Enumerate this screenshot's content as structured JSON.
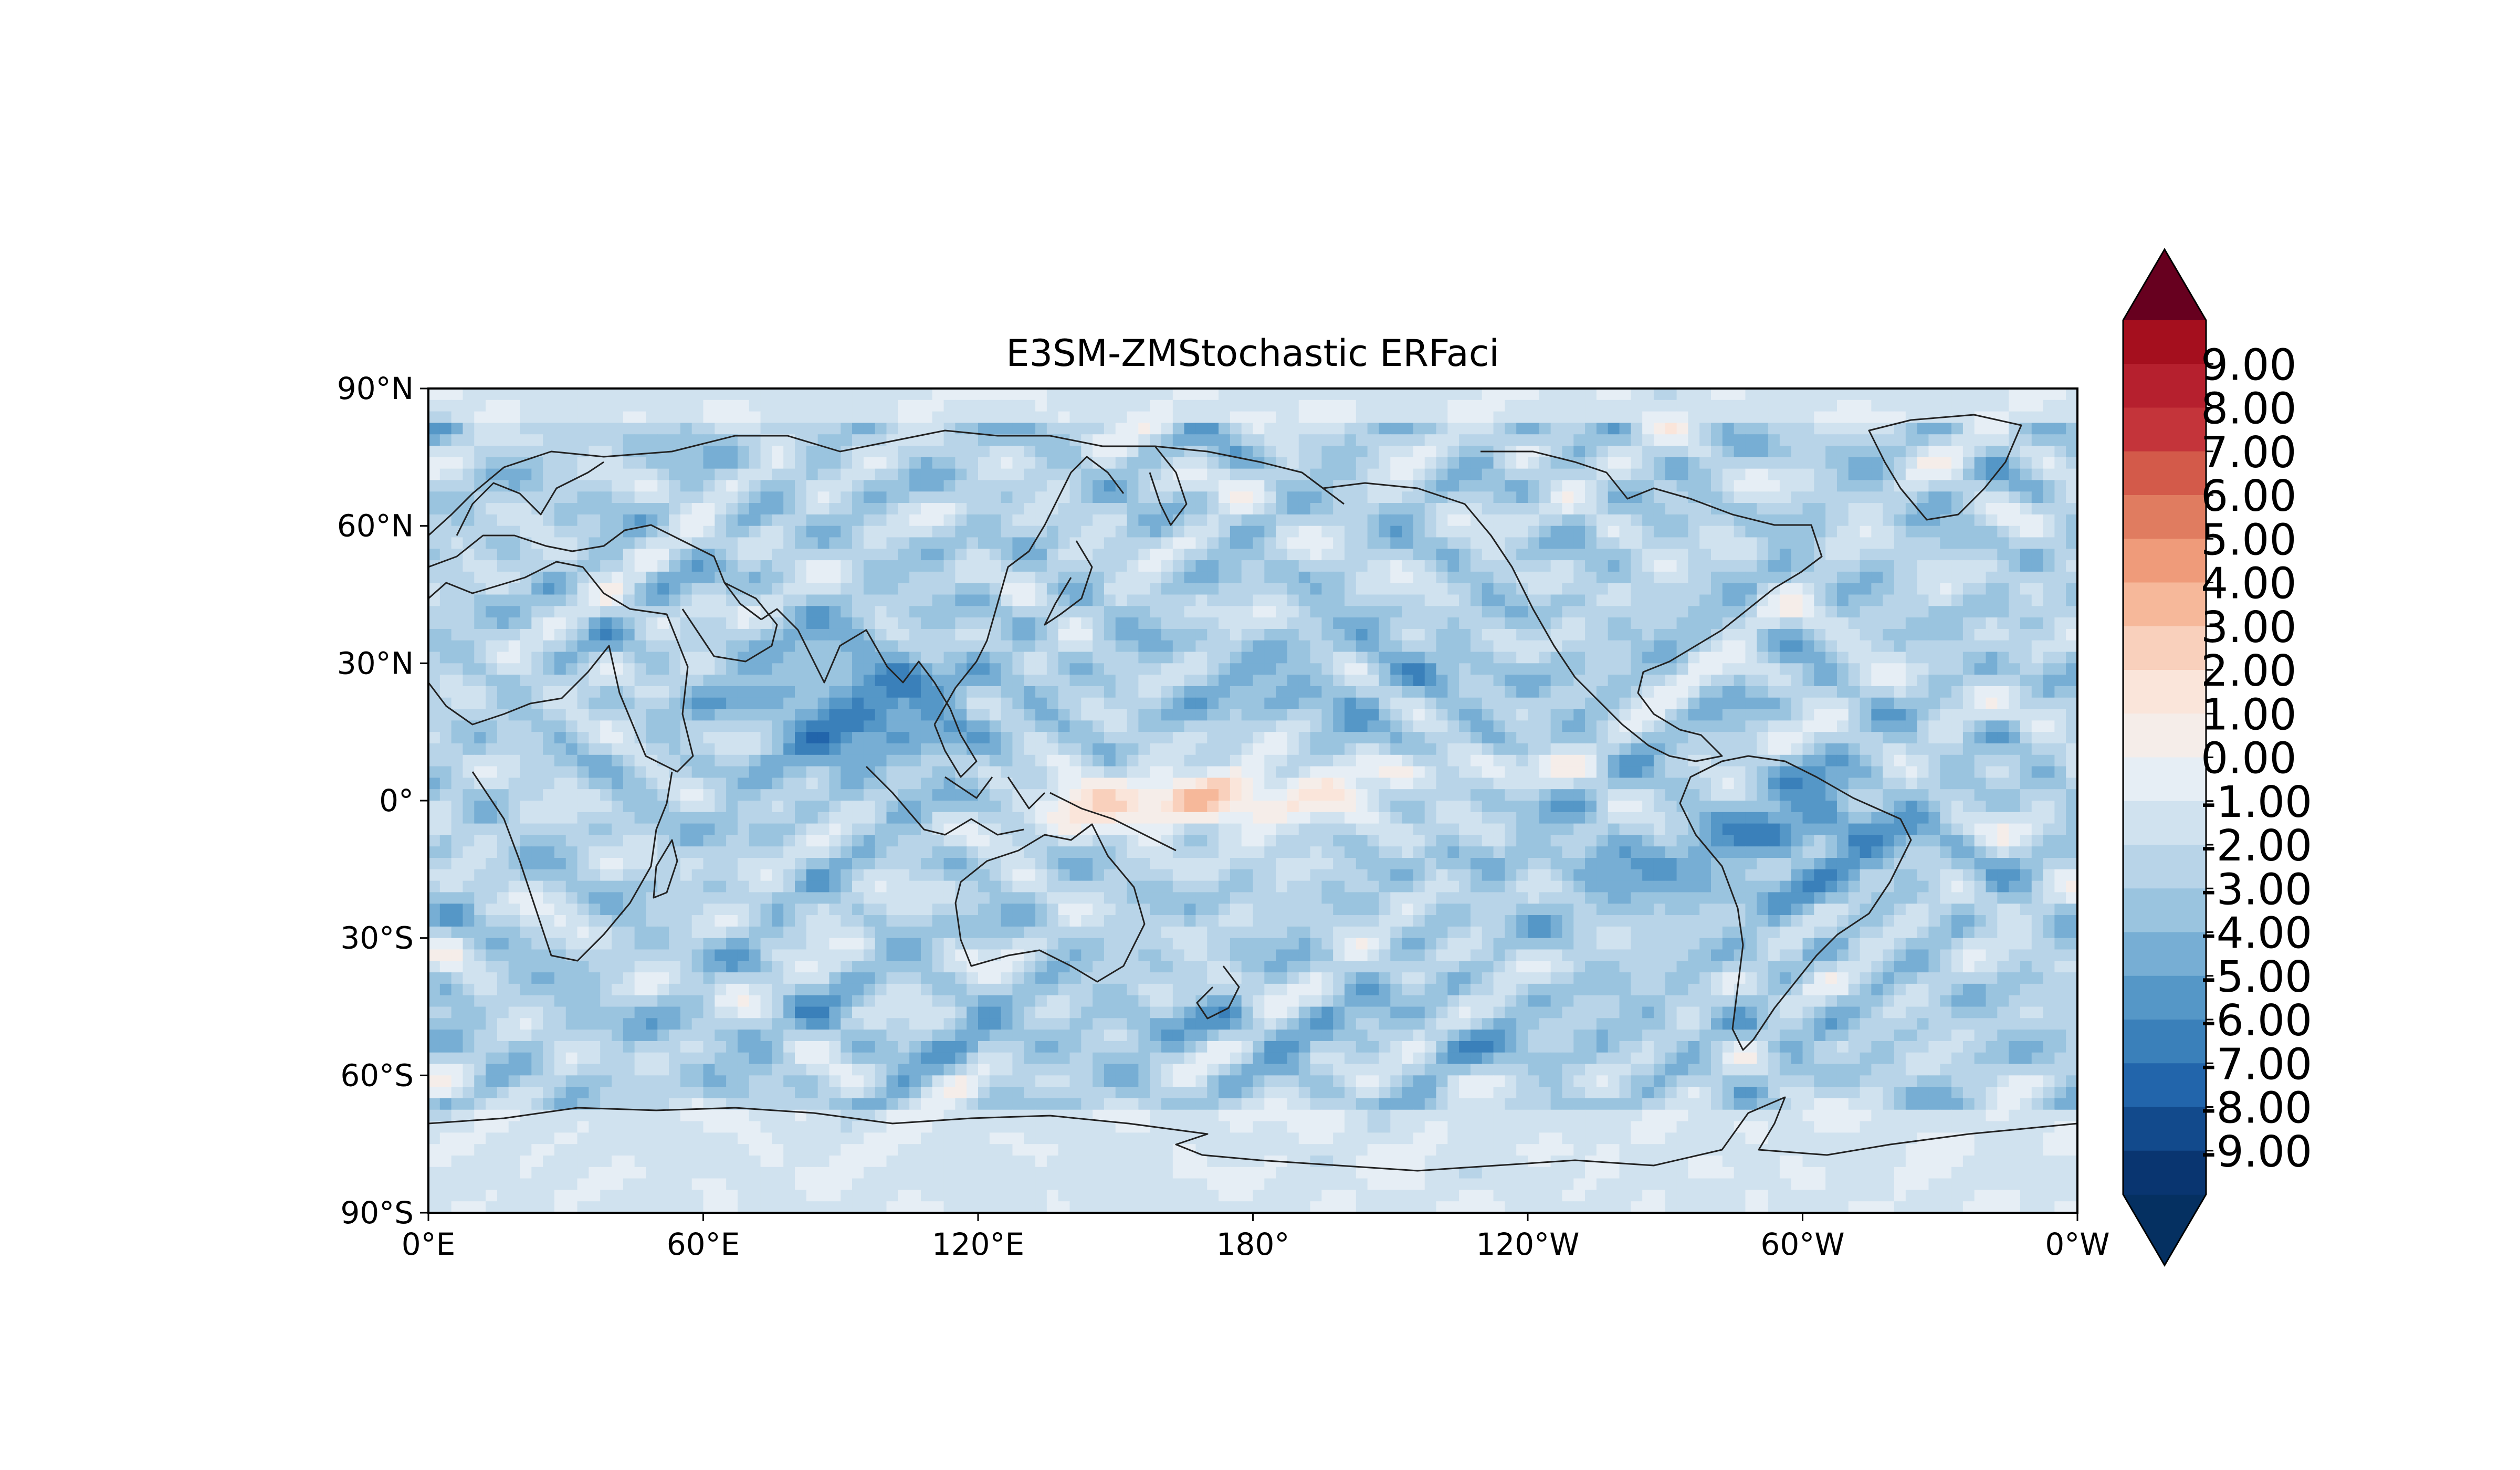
{
  "title": "E3SM-ZMStochastic ERFaci",
  "axes": {
    "x_ticks": [
      "0°E",
      "60°E",
      "120°E",
      "180°",
      "120°W",
      "60°W",
      "0°W"
    ],
    "y_ticks": [
      "90°N",
      "60°N",
      "30°N",
      "0°",
      "30°S",
      "60°S",
      "90°S"
    ]
  },
  "colorbar": {
    "labels": [
      "9.00",
      "8.00",
      "7.00",
      "6.00",
      "5.00",
      "4.00",
      "3.00",
      "2.00",
      "1.00",
      "0.00",
      "-1.00",
      "-2.00",
      "-3.00",
      "-4.00",
      "-5.00",
      "-6.00",
      "-7.00",
      "-8.00",
      "-9.00"
    ],
    "colors": [
      "#a50f1e",
      "#b6202e",
      "#c4343a",
      "#d35a4a",
      "#e07c60",
      "#ef9b7a",
      "#f6b89a",
      "#f9d0bc",
      "#fae5da",
      "#f5ede9",
      "#e6eef5",
      "#d0e2ef",
      "#b8d4e8",
      "#9ac4df",
      "#77aed4",
      "#5597c7",
      "#3a80ba",
      "#2265ab",
      "#124a8c",
      "#093570"
    ],
    "over_color": "#67001f",
    "under_color": "#053061",
    "extend": "both"
  },
  "chart_data": {
    "type": "heatmap",
    "title": "E3SM-ZMStochastic ERFaci",
    "projection": "PlateCarree",
    "lon_range": [
      0,
      360
    ],
    "lat_range": [
      -90,
      90
    ],
    "levels": [
      -9,
      -8,
      -7,
      -6,
      -5,
      -4,
      -3,
      -2,
      -1,
      0,
      1,
      2,
      3,
      4,
      5,
      6,
      7,
      8,
      9
    ],
    "colormap": "RdBu_r",
    "coastlines": true,
    "x_tick_labels": [
      "0°E",
      "60°E",
      "120°E",
      "180°",
      "120°W",
      "60°W",
      "0°W"
    ],
    "y_tick_labels": [
      "90°N",
      "60°N",
      "30°N",
      "0°",
      "30°S",
      "60°S",
      "90°S"
    ]
  }
}
